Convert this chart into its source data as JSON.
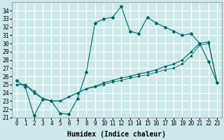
{
  "xlabel": "Humidex (Indice chaleur)",
  "bg_color": "#cce8e8",
  "grid_color": "#ffffff",
  "line_color": "#006666",
  "xlim": [
    -0.5,
    23.5
  ],
  "ylim": [
    21,
    35
  ],
  "xticks": [
    0,
    1,
    2,
    3,
    4,
    5,
    6,
    7,
    8,
    9,
    10,
    11,
    12,
    13,
    14,
    15,
    16,
    17,
    18,
    19,
    20,
    21,
    22,
    23
  ],
  "yticks": [
    21,
    22,
    23,
    24,
    25,
    26,
    27,
    28,
    29,
    30,
    31,
    32,
    33,
    34
  ],
  "series1_x": [
    0,
    1,
    2,
    3,
    4,
    5,
    6,
    7,
    8,
    9,
    10,
    11,
    12,
    13,
    14,
    15,
    16,
    17,
    18,
    19,
    20,
    21,
    22,
    23
  ],
  "series1_y": [
    25.5,
    24.7,
    21.2,
    23.2,
    23.0,
    21.5,
    21.4,
    23.3,
    26.5,
    32.5,
    33.0,
    33.2,
    34.5,
    31.5,
    31.2,
    33.2,
    32.5,
    32.0,
    31.5,
    31.0,
    31.2,
    30.0,
    27.8,
    25.2
  ],
  "series2_x": [
    0,
    1,
    2,
    3,
    4,
    5,
    6,
    7,
    8,
    9,
    10,
    11,
    12,
    13,
    14,
    15,
    16,
    17,
    18,
    19,
    20,
    21,
    22,
    23
  ],
  "series2_y": [
    25.0,
    25.0,
    24.0,
    23.3,
    23.0,
    23.0,
    23.5,
    24.0,
    24.5,
    24.8,
    25.2,
    25.5,
    25.8,
    26.0,
    26.3,
    26.5,
    26.8,
    27.2,
    27.5,
    28.0,
    29.0,
    30.0,
    30.2,
    25.2
  ],
  "series3_x": [
    0,
    1,
    2,
    3,
    4,
    5,
    6,
    7,
    8,
    9,
    10,
    11,
    12,
    13,
    14,
    15,
    16,
    17,
    18,
    19,
    20,
    21,
    22,
    23
  ],
  "series3_y": [
    25.0,
    25.0,
    24.2,
    23.3,
    23.0,
    23.0,
    23.5,
    24.0,
    24.5,
    24.7,
    25.0,
    25.3,
    25.5,
    25.8,
    26.0,
    26.2,
    26.5,
    26.8,
    27.0,
    27.5,
    28.5,
    29.8,
    30.0,
    25.2
  ],
  "label_fontsize": 7,
  "tick_fontsize": 5.5
}
